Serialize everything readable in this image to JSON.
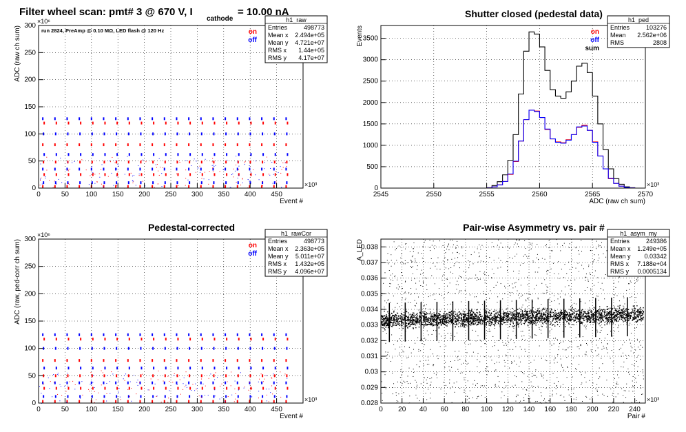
{
  "header": {
    "main_title_left": "Filter wheel scan: pmt#   3 @   670 V, I",
    "main_title_sub": "cathode",
    "main_title_right": "= 10.00 nA"
  },
  "chart_data": [
    {
      "id": "raw",
      "type": "scatter",
      "title": "",
      "annotation": "run 2824, PreAmp @ 0.10 MΩ, LED flash @  120 Hz",
      "xlabel": "Event #",
      "ylabel": "ADC (raw ch sum)",
      "x_scale_label": "×10³",
      "y_scale_label": "×10⁶",
      "xlim": [
        0,
        500
      ],
      "ylim": [
        0,
        300
      ],
      "xticks": [
        0,
        50,
        100,
        150,
        200,
        250,
        300,
        350,
        400,
        450
      ],
      "yticks": [
        0,
        50,
        100,
        150,
        200,
        250,
        300
      ],
      "grid": true,
      "legend": {
        "placement": "top-right",
        "entries": [
          {
            "label": "on",
            "color": "#ff0000"
          },
          {
            "label": "off",
            "color": "#0000ff"
          }
        ]
      },
      "stats": {
        "name": "h1_raw",
        "rows": [
          [
            "Entries",
            "498773"
          ],
          [
            "Mean x",
            "2.494e+05"
          ],
          [
            "Mean y",
            "4.721e+07"
          ],
          [
            "RMS x",
            "1.44e+05"
          ],
          [
            "RMS y",
            "4.17e+07"
          ]
        ]
      },
      "levels": [
        3,
        10,
        25,
        35,
        48,
        62,
        80,
        100,
        120,
        128
      ],
      "period": 23,
      "xmax_data": 470
    },
    {
      "id": "ped",
      "type": "line",
      "title": "Shutter closed (pedestal data)",
      "xlabel": "ADC (raw ch sum)",
      "ylabel": "Events",
      "x_scale_label": "×10³",
      "xlim": [
        2545,
        2570
      ],
      "ylim": [
        0,
        3800
      ],
      "xticks": [
        2545,
        2550,
        2555,
        2560,
        2565,
        2570
      ],
      "yticks": [
        0,
        500,
        1000,
        1500,
        2000,
        2500,
        3000,
        3500
      ],
      "grid": true,
      "legend": {
        "placement": "top-right",
        "entries": [
          {
            "label": "on",
            "color": "#ff0000"
          },
          {
            "label": "off",
            "color": "#0000ff"
          },
          {
            "label": "sum",
            "color": "#000000"
          }
        ]
      },
      "stats": {
        "name": "h1_ped",
        "rows": [
          [
            "Entries",
            "103276"
          ],
          [
            "Mean",
            "2.562e+06"
          ],
          [
            "RMS",
            "2808"
          ]
        ]
      },
      "bin_start": 2555,
      "bin_width": 0.5,
      "series": [
        {
          "name": "sum",
          "color": "#000000",
          "values": [
            10,
            60,
            150,
            310,
            650,
            1250,
            2200,
            3200,
            3650,
            3600,
            3300,
            2750,
            2300,
            2150,
            2100,
            2250,
            2500,
            2850,
            2920,
            2700,
            2150,
            1500,
            900,
            450,
            220,
            90,
            30,
            10,
            0,
            0
          ]
        },
        {
          "name": "on",
          "color": "#ff0000",
          "values": [
            5,
            30,
            75,
            155,
            320,
            620,
            1100,
            1600,
            1820,
            1800,
            1650,
            1370,
            1150,
            1080,
            1060,
            1130,
            1250,
            1420,
            1470,
            1350,
            1080,
            750,
            450,
            220,
            110,
            45,
            15,
            5,
            0,
            0
          ]
        },
        {
          "name": "off",
          "color": "#0000ff",
          "values": [
            5,
            30,
            75,
            155,
            330,
            630,
            1100,
            1600,
            1820,
            1790,
            1650,
            1380,
            1150,
            1070,
            1050,
            1120,
            1250,
            1430,
            1450,
            1350,
            1070,
            750,
            450,
            230,
            110,
            45,
            15,
            5,
            0,
            0
          ]
        }
      ],
      "baseline_blue_from": 2545,
      "baseline_blue_to": 2570
    },
    {
      "id": "rawcor",
      "type": "scatter",
      "title": "Pedestal-corrected",
      "xlabel": "Event #",
      "ylabel": "ADC (raw, ped-corr ch sum)",
      "x_scale_label": "×10³",
      "y_scale_label": "×10⁶",
      "xlim": [
        0,
        500
      ],
      "ylim": [
        0,
        300
      ],
      "xticks": [
        0,
        50,
        100,
        150,
        200,
        250,
        300,
        350,
        400,
        450
      ],
      "yticks": [
        0,
        50,
        100,
        150,
        200,
        250,
        300
      ],
      "grid": true,
      "legend": {
        "placement": "top-right",
        "entries": [
          {
            "label": "on",
            "color": "#ff0000"
          },
          {
            "label": "off",
            "color": "#0000ff"
          }
        ]
      },
      "stats": {
        "name": "h1_rawCor",
        "rows": [
          [
            "Entries",
            "498773"
          ],
          [
            "Mean x",
            "2.363e+05"
          ],
          [
            "Mean y",
            "5.011e+07"
          ],
          [
            "RMS x",
            "1.432e+05"
          ],
          [
            "RMS y",
            "4.096e+07"
          ]
        ]
      },
      "levels": [
        3,
        12,
        27,
        37,
        50,
        64,
        78,
        100,
        117,
        125
      ],
      "period": 23,
      "xmax_data": 470
    },
    {
      "id": "asym",
      "type": "scatter",
      "title": "Pair-wise Asymmetry vs. pair #",
      "xlabel": "Pair #",
      "ylabel": "A_LED",
      "x_scale_label": "×10³",
      "xlim": [
        0,
        250
      ],
      "ylim": [
        0.028,
        0.0385
      ],
      "xticks": [
        0,
        20,
        40,
        60,
        80,
        100,
        120,
        140,
        160,
        180,
        200,
        220,
        240
      ],
      "yticks": [
        0.028,
        0.029,
        0.03,
        0.031,
        0.032,
        0.033,
        0.034,
        0.035,
        0.036,
        0.037,
        0.038
      ],
      "grid": true,
      "stats": {
        "name": "h1_asym_my",
        "rows": [
          [
            "Entries",
            "249386"
          ],
          [
            "Mean x",
            "1.249e+05"
          ],
          [
            "Mean y",
            "0.03342"
          ],
          [
            "RMS x",
            "7.188e+04"
          ],
          [
            "RMS y",
            "0.0005134"
          ]
        ]
      },
      "band_center": 0.0333,
      "band_center_end": 0.0337,
      "band_width": 0.0007
    }
  ]
}
